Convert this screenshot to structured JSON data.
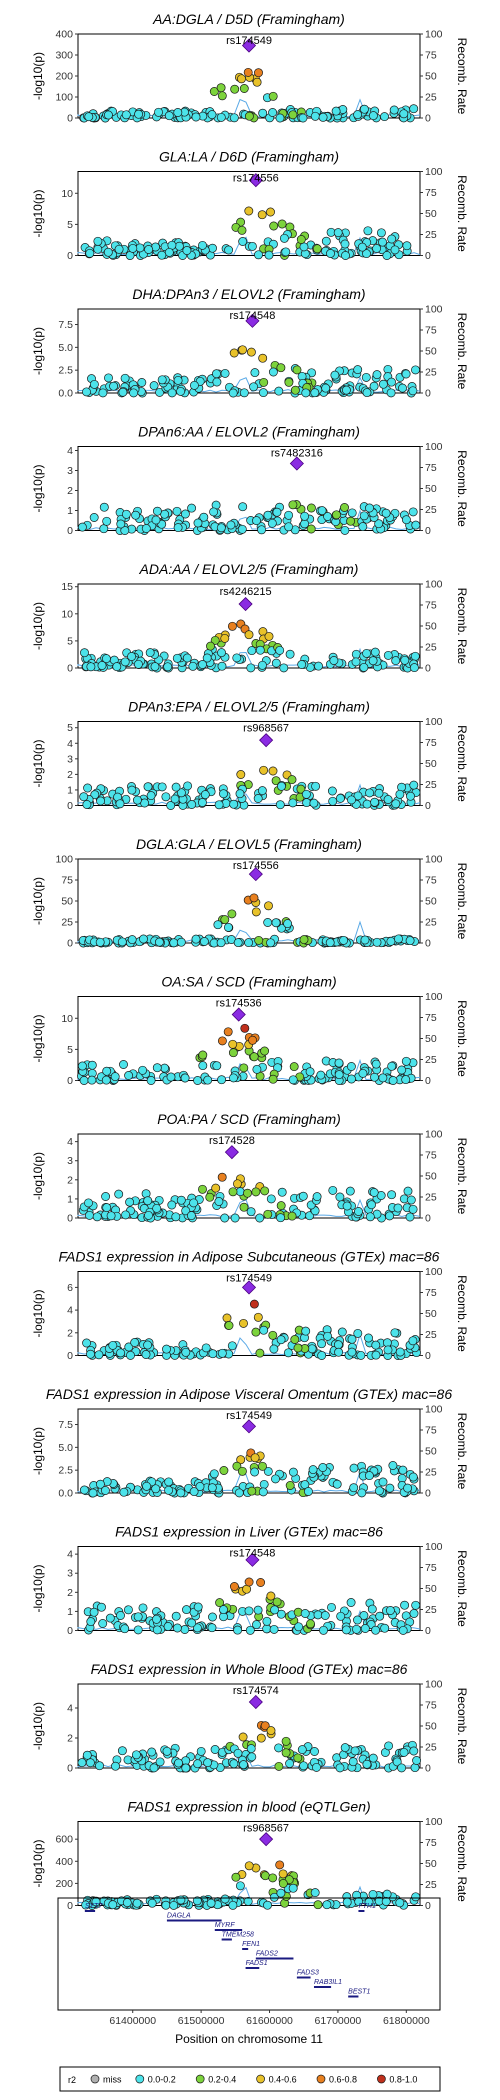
{
  "figure": {
    "xlabel": "Position on chromosome 11",
    "x_ticks": [
      "61400000",
      "61500000",
      "61600000",
      "61700000",
      "61800000"
    ],
    "x_tick_values": [
      61400000,
      61500000,
      61600000,
      61700000,
      61800000
    ],
    "xlim": [
      61320000,
      61820000
    ],
    "left_axis_label": "-log10(p)",
    "right_axis_label": "Recomb. Rate",
    "right_ticks": [
      0,
      25,
      50,
      75,
      100
    ]
  },
  "legend": {
    "title": "r2",
    "items": [
      {
        "label": "miss",
        "color": "#b0b0b0"
      },
      {
        "label": "0.0-0.2",
        "color": "#4ce3ea"
      },
      {
        "label": "0.2-0.4",
        "color": "#7cd33c"
      },
      {
        "label": "0.4-0.6",
        "color": "#e8c22a"
      },
      {
        "label": "0.6-0.8",
        "color": "#e8801f"
      },
      {
        "label": "0.8-1.0",
        "color": "#c0301c"
      }
    ]
  },
  "genes": [
    {
      "name": "SYT7",
      "start": 61330000,
      "end": 61345000,
      "row": 0
    },
    {
      "name": "DAGLA",
      "start": 61450000,
      "end": 61530000,
      "row": 1
    },
    {
      "name": "MYRF",
      "start": 61520000,
      "end": 61560000,
      "row": 2
    },
    {
      "name": "TMEM258",
      "start": 61530000,
      "end": 61545000,
      "row": 3
    },
    {
      "name": "FEN1",
      "start": 61560000,
      "end": 61565000,
      "row": 4
    },
    {
      "name": "FADS2",
      "start": 61580000,
      "end": 61635000,
      "row": 5
    },
    {
      "name": "FADS1",
      "start": 61565000,
      "end": 61585000,
      "row": 6
    },
    {
      "name": "FADS3",
      "start": 61640000,
      "end": 61660000,
      "row": 7
    },
    {
      "name": "RAB3IL1",
      "start": 61665000,
      "end": 61690000,
      "row": 8
    },
    {
      "name": "BEST1",
      "start": 61715000,
      "end": 61730000,
      "row": 9
    },
    {
      "name": "FTH1",
      "start": 61730000,
      "end": 61735000,
      "row": 0
    }
  ],
  "chart_data": [
    {
      "type": "scatter",
      "title": "AA:DGLA / D5D (Framingham)",
      "lead_snp": "rs174549",
      "ylabel": "-log10(p)",
      "ylim": [
        0,
        400
      ],
      "y_ticks": [
        0,
        100,
        200,
        300,
        400
      ],
      "lead_x": 61570000,
      "lead_y": 345,
      "peak_rel": 0.86,
      "left_w": 0.1,
      "right_w": 0.13,
      "seed": 11
    },
    {
      "type": "scatter",
      "title": "GLA:LA / D6D (Framingham)",
      "lead_snp": "rs174556",
      "ylabel": "-log10(p)",
      "ylim": [
        0,
        13.5
      ],
      "y_ticks": [
        0,
        5,
        10
      ],
      "lead_x": 61580000,
      "lead_y": 12.1,
      "peak_rel": 0.9,
      "left_w": 0.2,
      "right_w": 0.33,
      "seed": 23
    },
    {
      "type": "scatter",
      "title": "DHA:DPAn3 / ELOVL2 (Framingham)",
      "lead_snp": "rs174548",
      "ylabel": "-log10(p)",
      "ylim": [
        0,
        9.2
      ],
      "y_ticks": [
        0,
        2.5,
        5.0,
        7.5
      ],
      "lead_x": 61575000,
      "lead_y": 7.9,
      "peak_rel": 0.82,
      "left_w": 0.22,
      "right_w": 0.35,
      "seed": 37
    },
    {
      "type": "scatter",
      "title": "DPAn6:AA / ELOVL2 (Framingham)",
      "lead_snp": "rs7482316",
      "ylabel": "-log10(p)",
      "ylim": [
        0,
        4.2
      ],
      "y_ticks": [
        0,
        1,
        2,
        3,
        4
      ],
      "lead_x": 61640000,
      "lead_y": 3.35,
      "peak_rel": 0.5,
      "left_w": 0.38,
      "right_w": 0.4,
      "seed": 41
    },
    {
      "type": "scatter",
      "title": "ADA:AA / ELOVL2/5 (Framingham)",
      "lead_snp": "rs4246215",
      "ylabel": "-log10(p)",
      "ylim": [
        0,
        15.5
      ],
      "y_ticks": [
        0,
        5,
        10,
        15
      ],
      "lead_x": 61565000,
      "lead_y": 11.8,
      "peak_rel": 0.85,
      "left_w": 0.25,
      "right_w": 0.28,
      "seed": 53
    },
    {
      "type": "scatter",
      "title": "DPAn3:EPA / ELOVL2/5 (Framingham)",
      "lead_snp": "rs968567",
      "ylabel": "-log10(p)",
      "ylim": [
        0,
        5.4
      ],
      "y_ticks": [
        0,
        1,
        2,
        3,
        4,
        5
      ],
      "lead_x": 61595000,
      "lead_y": 4.2,
      "peak_rel": 0.82,
      "left_w": 0.3,
      "right_w": 0.32,
      "seed": 61
    },
    {
      "type": "scatter",
      "title": "DGLA:GLA / ELOVL5 (Framingham)",
      "lead_snp": "rs174556",
      "ylabel": "-log10(p)",
      "ylim": [
        0,
        100
      ],
      "y_ticks": [
        0,
        25,
        50,
        75,
        100
      ],
      "lead_x": 61580000,
      "lead_y": 82,
      "peak_rel": 0.78,
      "left_w": 0.06,
      "right_w": 0.06,
      "seed": 71
    },
    {
      "type": "scatter",
      "title": "OA:SA / SCD (Framingham)",
      "lead_snp": "rs174536",
      "ylabel": "-log10(p)",
      "ylim": [
        0,
        13.5
      ],
      "y_ticks": [
        0,
        5,
        10
      ],
      "lead_x": 61555000,
      "lead_y": 10.6,
      "peak_rel": 0.9,
      "left_w": 0.25,
      "right_w": 0.3,
      "seed": 83
    },
    {
      "type": "scatter",
      "title": "POA:PA / SCD (Framingham)",
      "lead_snp": "rs174528",
      "ylabel": "-log10(p)",
      "ylim": [
        0,
        4.4
      ],
      "y_ticks": [
        0,
        1,
        2,
        3,
        4
      ],
      "lead_x": 61545000,
      "lead_y": 3.45,
      "peak_rel": 0.9,
      "left_w": 0.38,
      "right_w": 0.42,
      "seed": 97
    },
    {
      "type": "scatter",
      "title": "FADS1 expression in Adipose Subcutaneous (GTEx) mac=86",
      "lead_snp": "rs174549",
      "ylabel": "-log10(p)",
      "ylim": [
        0,
        7.4
      ],
      "y_ticks": [
        0,
        2,
        4,
        6
      ],
      "lead_x": 61570000,
      "lead_y": 6.0,
      "peak_rel": 0.85,
      "left_w": 0.2,
      "right_w": 0.38,
      "seed": 103
    },
    {
      "type": "scatter",
      "title": "FADS1 expression in Adipose Visceral Omentum (GTEx) mac=86",
      "lead_snp": "rs174549",
      "ylabel": "-log10(p)",
      "ylim": [
        0,
        9.2
      ],
      "y_ticks": [
        0,
        2.5,
        5.0,
        7.5
      ],
      "lead_x": 61570000,
      "lead_y": 7.3,
      "peak_rel": 0.8,
      "left_w": 0.18,
      "right_w": 0.42,
      "seed": 113
    },
    {
      "type": "scatter",
      "title": "FADS1 expression in Liver (GTEx) mac=86",
      "lead_snp": "rs174548",
      "ylabel": "-log10(p)",
      "ylim": [
        0,
        4.4
      ],
      "y_ticks": [
        0,
        1,
        2,
        3,
        4
      ],
      "lead_x": 61575000,
      "lead_y": 3.7,
      "peak_rel": 0.9,
      "left_w": 0.35,
      "right_w": 0.4,
      "seed": 127
    },
    {
      "type": "scatter",
      "title": "FADS1 expression in Whole Blood (GTEx) mac=86",
      "lead_snp": "rs174574",
      "ylabel": "-log10(p)",
      "ylim": [
        0,
        5.6
      ],
      "y_ticks": [
        0,
        2,
        4
      ],
      "lead_x": 61580000,
      "lead_y": 4.4,
      "peak_rel": 0.82,
      "left_w": 0.3,
      "right_w": 0.35,
      "seed": 131
    },
    {
      "type": "scatter",
      "title": "FADS1 expression in blood (eQTLGen)",
      "lead_snp": "rs968567",
      "ylabel": "-log10(p)",
      "ylim": [
        0,
        760
      ],
      "y_ticks": [
        0,
        200,
        400,
        600
      ],
      "lead_x": 61595000,
      "lead_y": 600,
      "peak_rel": 0.82,
      "left_w": 0.1,
      "right_w": 0.2,
      "seed": 139
    }
  ]
}
